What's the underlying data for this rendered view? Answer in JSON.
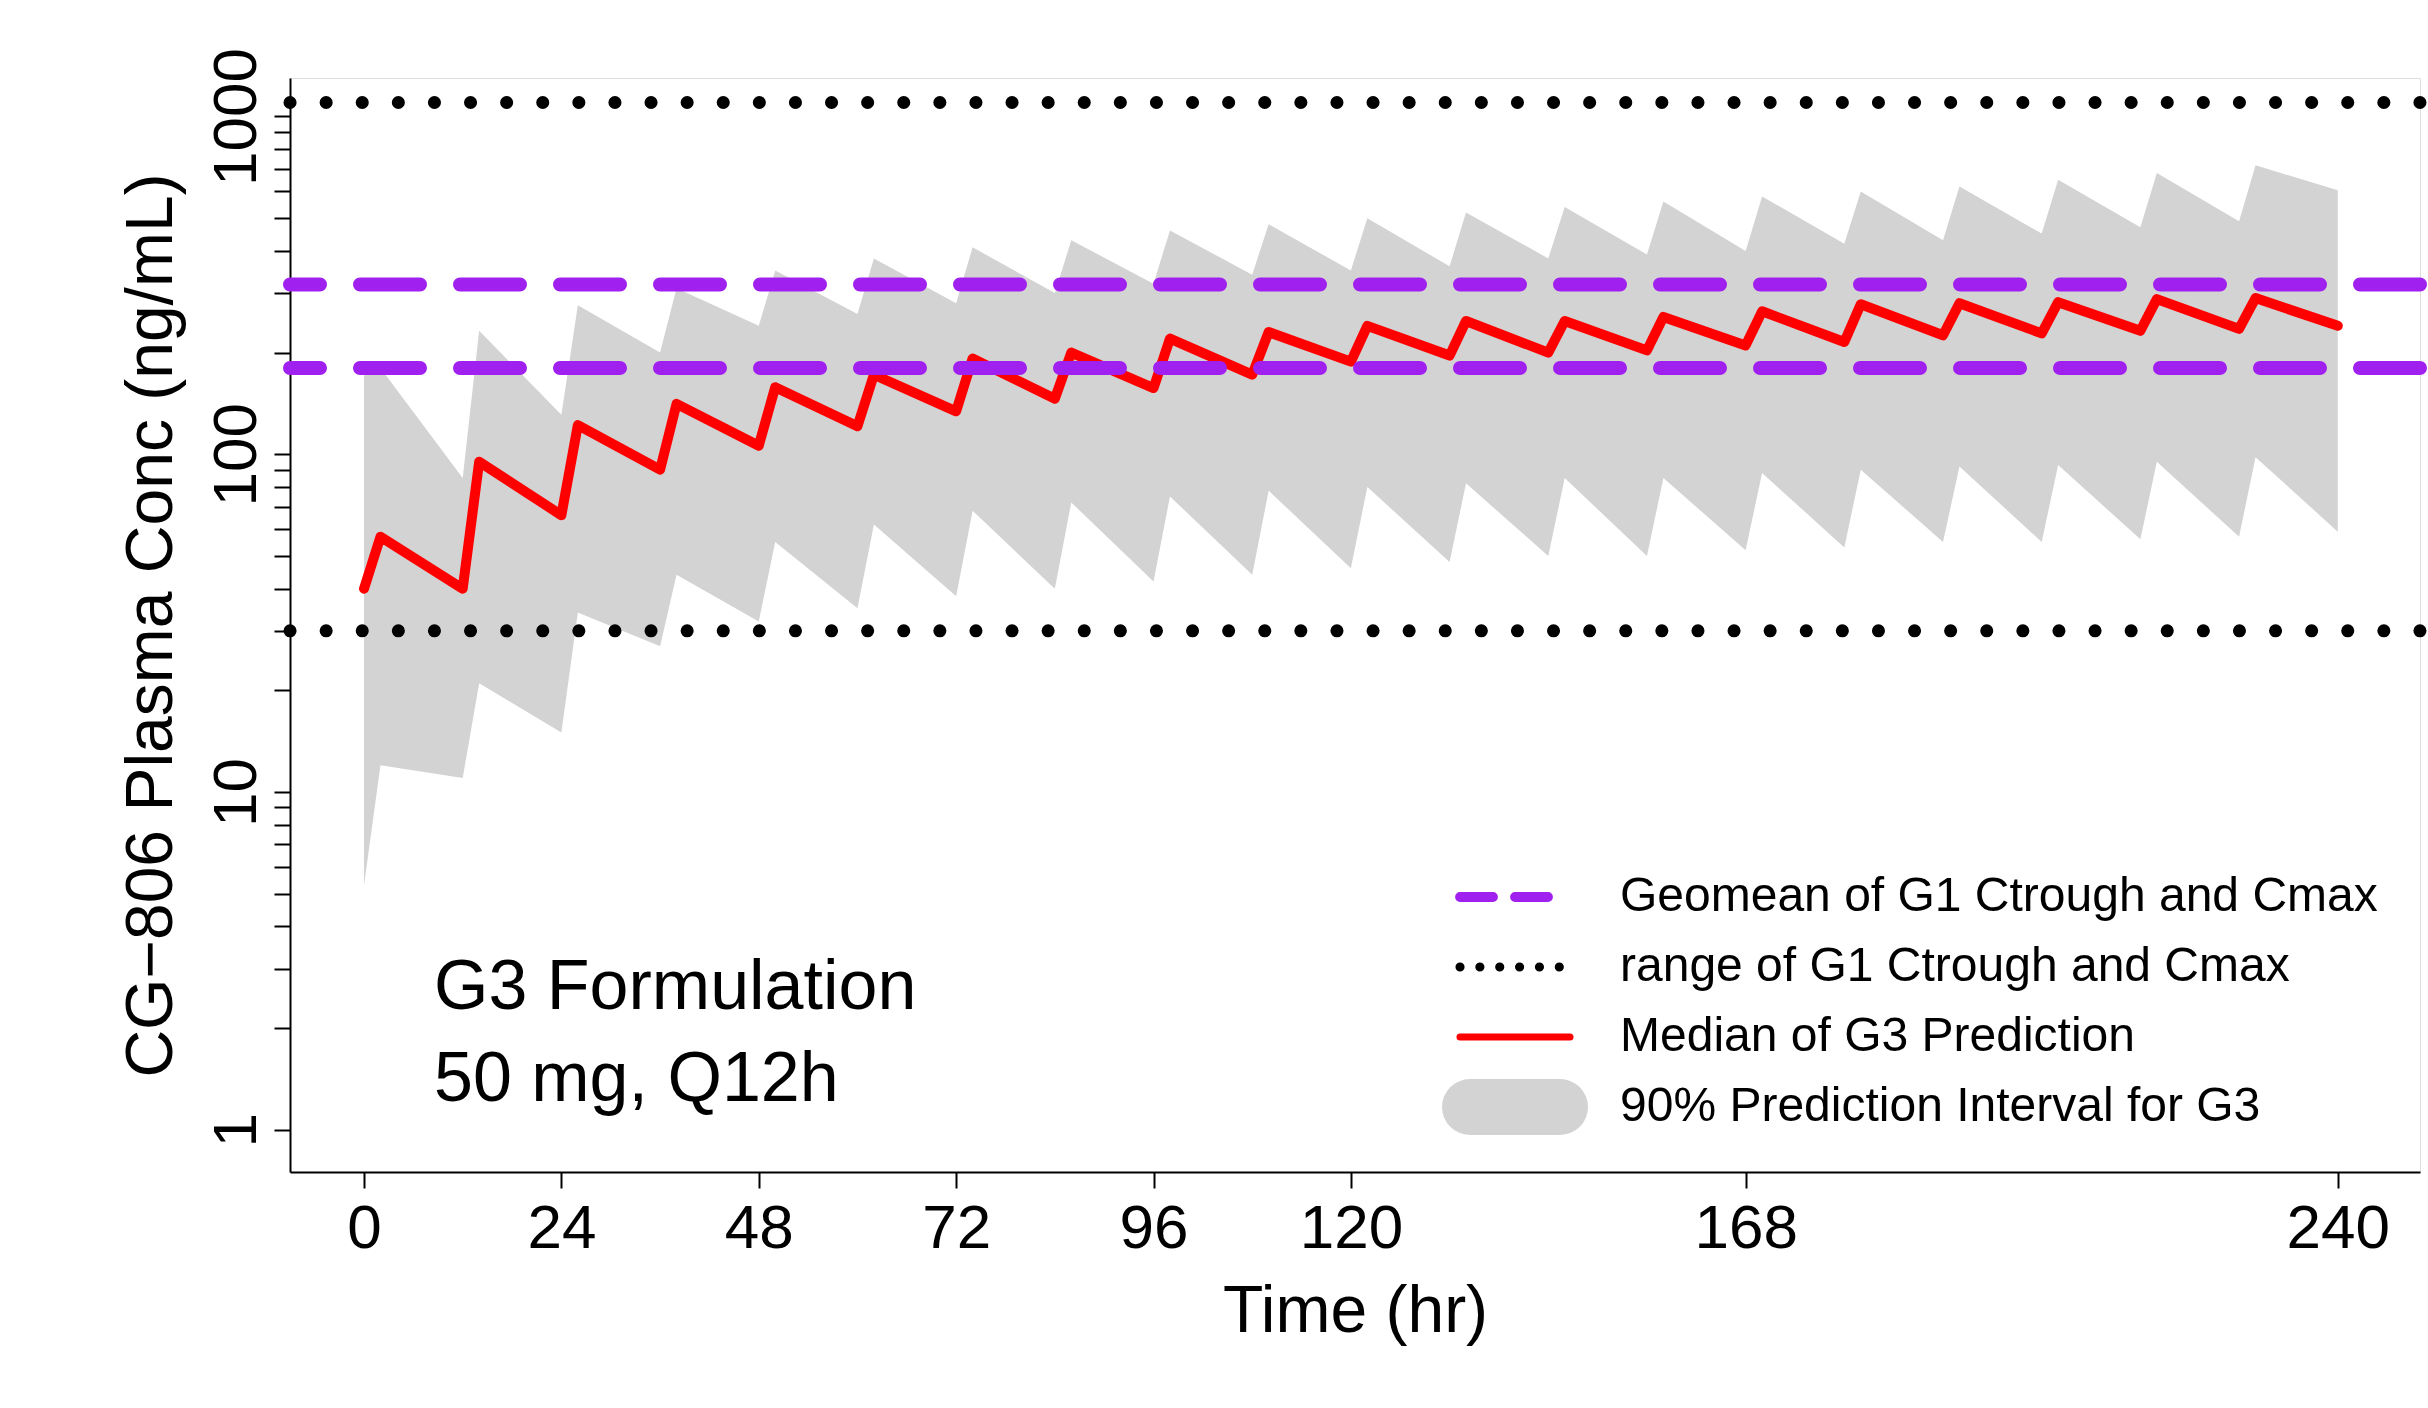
{
  "chart_data": {
    "type": "line",
    "xlabel": "Time (hr)",
    "ylabel": "CG−806 Plasma Conc (ng/mL)",
    "xlim": [
      -9,
      250
    ],
    "xticks": [
      0,
      24,
      48,
      72,
      96,
      120,
      168,
      240
    ],
    "ylim": [
      0.75,
      1300
    ],
    "log": "y",
    "yticks": [
      1,
      {
        "value": 2,
        "label": null
      },
      {
        "value": 3,
        "label": null
      },
      {
        "value": 4,
        "label": null
      },
      {
        "value": 5,
        "label": null
      },
      {
        "value": 6,
        "label": null
      },
      {
        "value": 7,
        "label": null
      },
      {
        "value": 8,
        "label": null
      },
      {
        "value": 9,
        "label": null
      },
      10,
      {
        "value": 20,
        "label": null
      },
      {
        "value": 30,
        "label": null
      },
      {
        "value": 40,
        "label": null
      },
      {
        "value": 50,
        "label": null
      },
      {
        "value": 60,
        "label": null
      },
      {
        "value": 70,
        "label": null
      },
      {
        "value": 80,
        "label": null
      },
      {
        "value": 90,
        "label": null
      },
      100,
      {
        "value": 200,
        "label": null
      },
      {
        "value": 300,
        "label": null
      },
      {
        "value": 400,
        "label": null
      },
      {
        "value": 500,
        "label": null
      },
      {
        "value": 600,
        "label": null
      },
      {
        "value": 700,
        "label": null
      },
      {
        "value": 800,
        "label": null
      },
      {
        "value": 900,
        "label": null
      },
      1000
    ],
    "grid": false,
    "legend": "bottom right",
    "line_style": "solid",
    "marker": "none",
    "x": [
      0,
      2,
      12,
      14,
      24,
      26,
      36,
      38,
      48,
      50,
      60,
      62,
      72,
      74,
      84,
      86,
      96,
      98,
      108,
      110,
      120,
      122,
      132,
      134,
      144,
      146,
      156,
      158,
      168,
      170,
      180,
      182,
      192,
      194,
      204,
      206,
      216,
      218,
      228,
      230,
      240
    ],
    "series": [
      {
        "name": "Median of G3 Prediction",
        "color": "#ff0000",
        "lower": [
          5.3,
          12,
          11,
          21,
          15,
          34,
          27,
          44,
          32,
          55,
          35,
          62,
          38,
          68,
          40,
          72,
          42,
          75,
          44,
          78,
          46,
          80,
          48,
          82,
          50,
          85,
          50,
          85,
          52,
          88,
          53,
          90,
          55,
          92,
          55,
          93,
          56,
          95,
          57,
          98,
          59
        ],
        "upper": [
          171,
          180,
          85,
          232,
          131,
          276,
          200,
          310,
          240,
          350,
          260,
          380,
          280,
          410,
          300,
          430,
          320,
          460,
          340,
          480,
          350,
          500,
          360,
          520,
          380,
          540,
          390,
          560,
          400,
          580,
          420,
          600,
          430,
          620,
          450,
          650,
          470,
          680,
          490,
          717,
          605
        ],
        "values": [
          40,
          57,
          40,
          95,
          66,
          122,
          90,
          141,
          106,
          158,
          121,
          172,
          134,
          192,
          146,
          200,
          157,
          220,
          172,
          230,
          188,
          240,
          196,
          248,
          200,
          248,
          203,
          255,
          210,
          265,
          215,
          278,
          225,
          280,
          228,
          282,
          232,
          288,
          235,
          290,
          240
        ]
      }
    ],
    "ref_lines": [
      {
        "axis": "y",
        "value": 318,
        "label": "Geomean of G1 Ctrough and Cmax",
        "color": "#a020f0",
        "line_style": "dashed"
      },
      {
        "axis": "y",
        "value": 180,
        "color": "#a020f0",
        "line_style": "dashed"
      },
      {
        "axis": "y",
        "value": 1100,
        "label": "range of G1 Ctrough and Cmax",
        "color": "#000000",
        "line_style": "dotted"
      },
      {
        "axis": "y",
        "value": 30,
        "color": "#000000",
        "line_style": "dotted"
      }
    ],
    "annotations": [
      "G3 Formulation",
      "50 mg, Q12h",
      "90% Prediction Interval for G3"
    ]
  }
}
